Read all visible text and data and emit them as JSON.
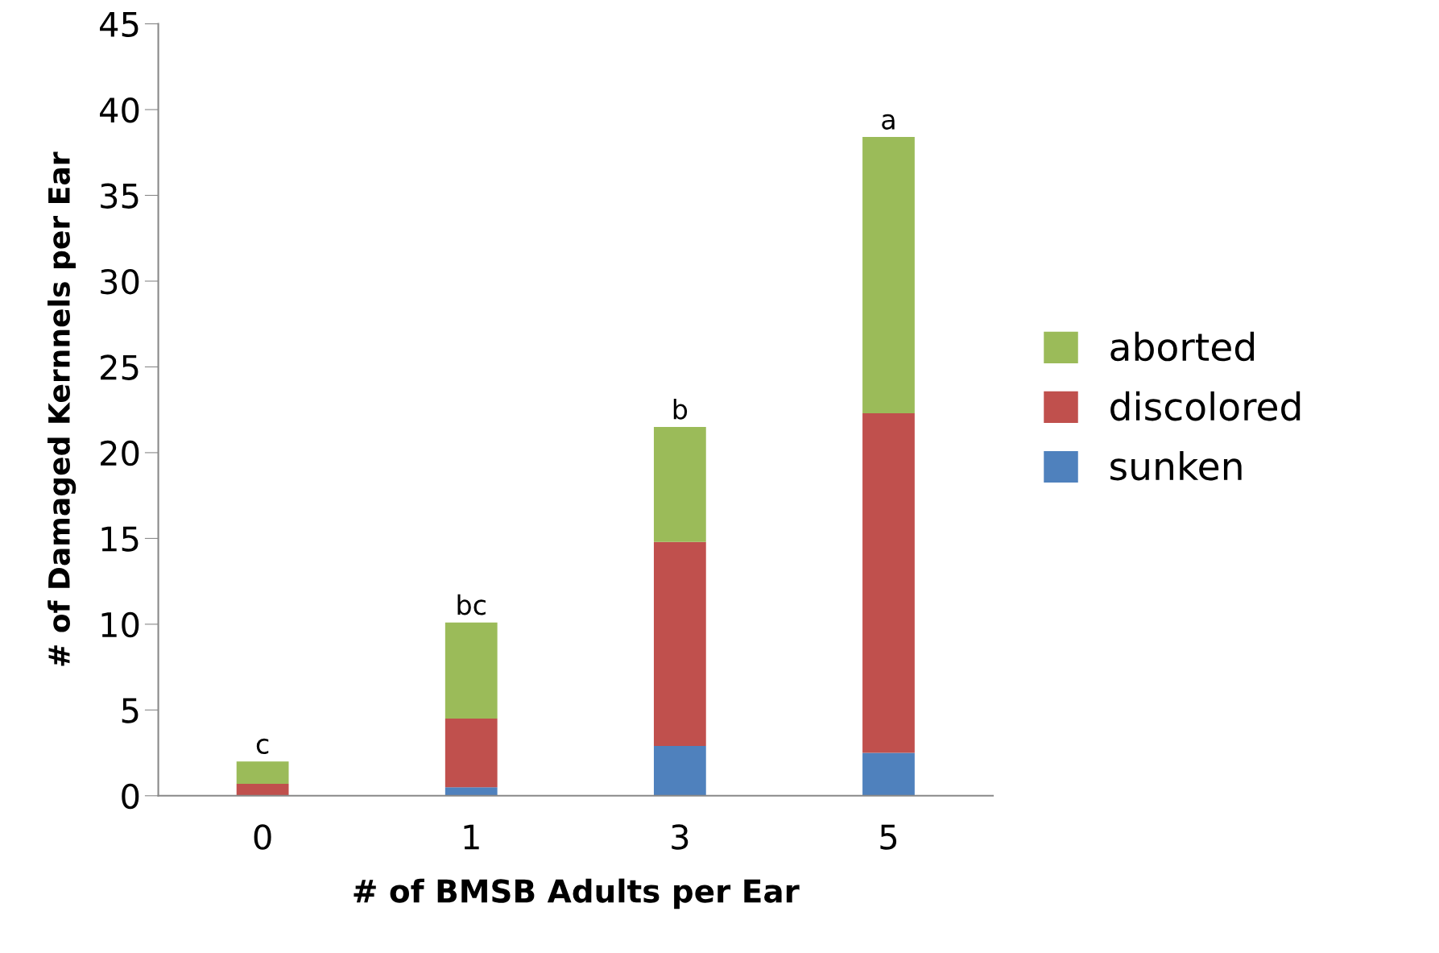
{
  "chart_data": {
    "type": "bar",
    "stacked": true,
    "xlabel": "# of BMSB Adults per Ear",
    "ylabel": "# of Damaged Kernnels per Ear",
    "categories": [
      "0",
      "1",
      "3",
      "5"
    ],
    "series": [
      {
        "name": "sunken",
        "color": "#4f81bd",
        "values": [
          0,
          0.5,
          2.9,
          2.5
        ]
      },
      {
        "name": "discolored",
        "color": "#c0504d",
        "values": [
          0.7,
          4.0,
          11.9,
          19.8
        ]
      },
      {
        "name": "aborted",
        "color": "#9bbb59",
        "values": [
          1.3,
          5.6,
          6.7,
          16.1
        ]
      }
    ],
    "ylim": [
      0,
      45
    ],
    "yticks": [
      0,
      5,
      10,
      15,
      20,
      25,
      30,
      35,
      40,
      45
    ],
    "grid": false,
    "legend": "right",
    "annotations": [
      {
        "text": "c",
        "x": "0",
        "y": 2.0
      },
      {
        "text": "bc",
        "x": "1",
        "y": 10.1
      },
      {
        "text": "b",
        "x": "3",
        "y": 21.5
      },
      {
        "text": "a",
        "x": "5",
        "y": 38.4
      }
    ]
  }
}
